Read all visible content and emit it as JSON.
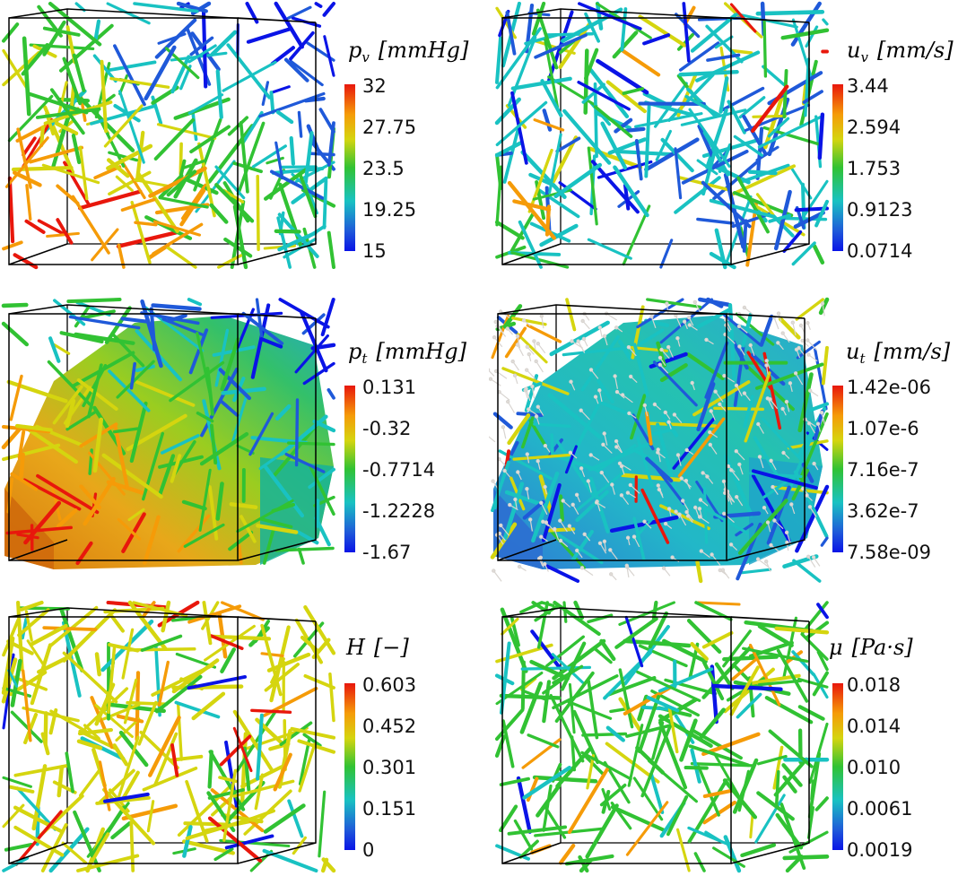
{
  "panels": [
    {
      "id": "pv",
      "symbol": "p",
      "sub": "v",
      "unit": "[mmHg]",
      "ticks": [
        "32",
        "27.75",
        "23.5",
        "19.25",
        "15"
      ],
      "has_surface": false,
      "has_arrows": false,
      "rod_palette": "pressure"
    },
    {
      "id": "uv",
      "symbol": "u",
      "sub": "v",
      "unit": "[mm/s]",
      "ticks": [
        "3.44",
        "2.594",
        "1.753",
        "0.9123",
        "0.0714"
      ],
      "has_surface": false,
      "has_arrows": false,
      "rod_palette": "velocity"
    },
    {
      "id": "pt",
      "symbol": "p",
      "sub": "t",
      "unit": "[mmHg]",
      "ticks": [
        "0.131",
        "-0.32",
        "-0.7714",
        "-1.2228",
        "-1.67"
      ],
      "has_surface": true,
      "has_arrows": false,
      "rod_palette": "pressure"
    },
    {
      "id": "ut",
      "symbol": "u",
      "sub": "t",
      "unit": "[mm/s]",
      "ticks": [
        "1.42e-06",
        "1.07e-6",
        "7.16e-7",
        "3.62e-7",
        "7.58e-09"
      ],
      "has_surface": true,
      "has_arrows": true,
      "rod_palette": "velocity"
    },
    {
      "id": "H",
      "symbol": "H",
      "sub": "",
      "unit": "[−]",
      "ticks": [
        "0.603",
        "0.452",
        "0.301",
        "0.151",
        "0"
      ],
      "has_surface": false,
      "has_arrows": false,
      "rod_palette": "hematocrit"
    },
    {
      "id": "mu",
      "symbol": "μ",
      "sub": "",
      "unit": "[Pa·s]",
      "ticks": [
        "0.018",
        "0.014",
        "0.010",
        "0.0061",
        "0.0019"
      ],
      "has_surface": false,
      "has_arrows": false,
      "rod_palette": "viscosity"
    }
  ],
  "colormap": [
    "#e8170c",
    "#f59b08",
    "#d5d50f",
    "#31c233",
    "#19c2c2",
    "#1f59d9",
    "#0a14e6"
  ]
}
